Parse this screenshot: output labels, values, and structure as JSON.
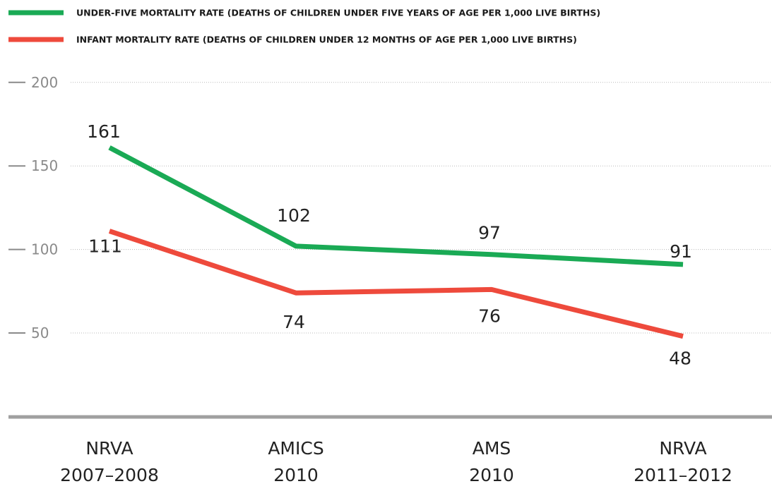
{
  "chart_data": {
    "type": "line",
    "categories": [
      [
        "NRVA",
        "2007–2008"
      ],
      [
        "AMICS",
        "2010"
      ],
      [
        "AMS",
        "2010"
      ],
      [
        "NRVA",
        "2011–2012"
      ]
    ],
    "series": [
      {
        "name": "UNDER-FIVE MORTALITY RATE (DEATHS OF CHILDREN UNDER FIVE YEARS OF AGE PER 1,000 LIVE BIRTHS)",
        "values": [
          161,
          102,
          97,
          91
        ],
        "labels": [
          "161",
          "102",
          "97",
          "91"
        ],
        "color": "#1aaa55"
      },
      {
        "name": "INFANT MORTALITY RATE (DEATHS OF CHILDREN UNDER 12 MONTHS OF AGE PER 1,000 LIVE BIRTHS)",
        "values": [
          111,
          74,
          76,
          48
        ],
        "labels": [
          "111",
          "74",
          "76",
          "48"
        ],
        "color": "#ee4a3c"
      }
    ],
    "yticks": [
      200,
      150,
      100,
      50
    ],
    "ylim": [
      0,
      200
    ],
    "grid": true,
    "legend": "top-left",
    "title": "",
    "xlabel": "",
    "ylabel": ""
  }
}
